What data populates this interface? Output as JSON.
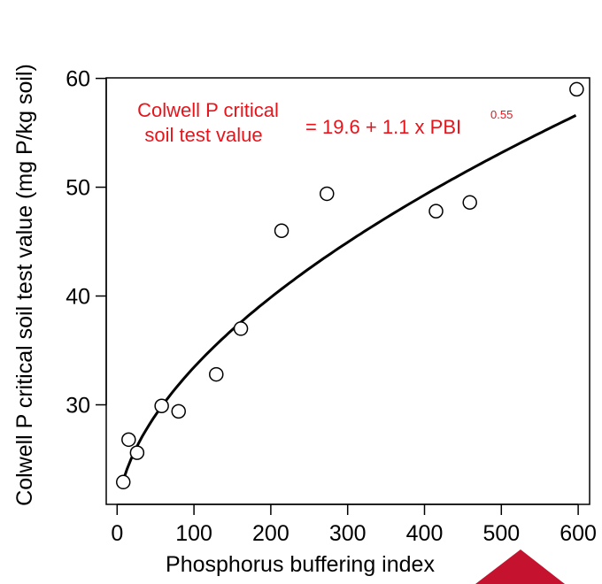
{
  "chart_data": {
    "type": "scatter",
    "title": "",
    "xlabel": "Phosphorus buffering index",
    "ylabel": "Colwell P critical soil test value (mg P/kg soil)",
    "xlim": [
      -10,
      610
    ],
    "ylim": [
      22,
      61
    ],
    "xticks": [
      0,
      100,
      200,
      300,
      400,
      500,
      600
    ],
    "yticks": [
      30,
      40,
      50,
      60
    ],
    "grid": false,
    "points": {
      "x": [
        8,
        15,
        26,
        58,
        80,
        129,
        161,
        214,
        273,
        415,
        459,
        598
      ],
      "y": [
        22.9,
        26.8,
        25.6,
        29.9,
        29.4,
        32.8,
        37.0,
        46.0,
        49.4,
        47.8,
        48.6,
        59.0
      ]
    },
    "fit": {
      "intercept": 19.6,
      "coefficient": 1.1,
      "exponent": 0.55,
      "x_range": [
        8,
        597
      ]
    },
    "annotation": {
      "line1": "Colwell P critical",
      "line2": "soil test value",
      "equation": "= 19.6 + 1.1 x PBI",
      "exponent_text": "0.55",
      "color": "#e8141b"
    },
    "corner_marker_color": "#c4122f"
  }
}
